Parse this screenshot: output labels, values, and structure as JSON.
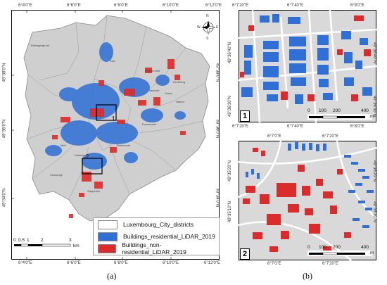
{
  "colors": {
    "district_fill": "#cfcfcf",
    "residential": "#2f6fd6",
    "non_residential": "#dc2b2b",
    "inset_bg": "#d9d9d9",
    "road": "#ffffff"
  },
  "panel_a": {
    "caption": "(a)",
    "top_ticks": [
      "6°4'0\"E",
      "6°6'0\"E",
      "6°8'0\"E",
      "6°10'0\"E",
      "6°12'0\"E"
    ],
    "bottom_ticks": [
      "6°4'0\"E",
      "6°6'0\"E",
      "6°8'0\"E",
      "6°10'0\"E",
      "6°12'0\"E"
    ],
    "left_ticks": [
      "49°38'0\"N",
      "49°36'0\"N",
      "49°34'0\"N"
    ],
    "right_ticks": [
      "49°38'0\"N",
      "49°36'0\"N",
      "49°34'0\"N"
    ],
    "legend": [
      {
        "label": "Luxembourg_City_districts",
        "swatch": "#ffffff"
      },
      {
        "label": "Buildings_residential_LiDAR_2019",
        "swatch": "#2f6fd6"
      },
      {
        "label": "Buildings_non-residential_LiDAR_2019",
        "swatch": "#dc2b2b"
      }
    ],
    "scale": {
      "labels": [
        "0",
        "0.5",
        "1",
        "2",
        "3"
      ],
      "unit": "km"
    },
    "box_labels": [
      "1",
      "2"
    ],
    "places": [
      "Bonnevoie",
      "Gasperich",
      "Cessange",
      "Merl",
      "Hamm",
      "Kirchberg",
      "Rollingergrund",
      "Eich",
      "Weimershof",
      "Neudorf",
      "Cents",
      "Pulvermuhl",
      "Hollerich"
    ]
  },
  "panel_b": {
    "caption": "(b)",
    "inset1": {
      "number": "1",
      "top_ticks": [
        "6°7'20\"E",
        "6°7'40\"E",
        "6°8'0\"E"
      ],
      "bottom_ticks": [
        "6°7'20\"E",
        "6°7'40\"E",
        "6°8'0\"E"
      ],
      "left_ticks": [
        "49°36'40\"N",
        "49°36'30\"N"
      ],
      "right_ticks": [
        "49°36'40\"N",
        "49°36'30\"N"
      ],
      "scale": {
        "labels": [
          "0",
          "100",
          "200",
          "400"
        ],
        "unit": "m"
      }
    },
    "inset2": {
      "number": "2",
      "top_ticks": [
        "6°7'0\"E",
        "6°7'20\"E"
      ],
      "bottom_ticks": [
        "6°7'0\"E",
        "6°7'20\"E"
      ],
      "left_ticks": [
        "49°35'20\"N",
        "49°35'10\"N"
      ],
      "right_ticks": [
        "49°35'20\"N",
        "49°35'10\"N"
      ],
      "scale": {
        "labels": [
          "0",
          "100",
          "200",
          "400"
        ],
        "unit": "m"
      }
    }
  },
  "compass_letters": [
    "N",
    "S",
    "E",
    "W"
  ]
}
